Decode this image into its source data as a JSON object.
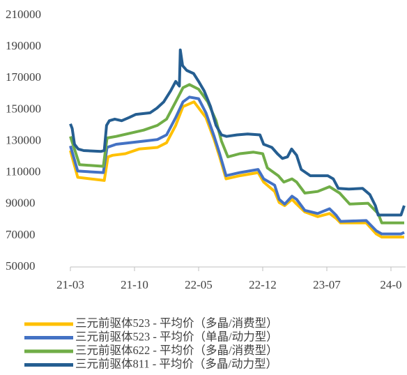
{
  "chart_data": {
    "type": "line",
    "xlim": [
      0,
      36.6
    ],
    "xticks": [
      {
        "value": 0,
        "label": "21-03"
      },
      {
        "value": 7,
        "label": "21-10"
      },
      {
        "value": 14,
        "label": "22-05"
      },
      {
        "value": 21,
        "label": "22-12"
      },
      {
        "value": 28,
        "label": "23-07"
      },
      {
        "value": 35,
        "label": "24-0"
      }
    ],
    "ylim": [
      50000,
      210000
    ],
    "yticks": [
      50000,
      70000,
      90000,
      110000,
      130000,
      150000,
      170000,
      190000,
      210000
    ],
    "grid": false,
    "legend": "bottom",
    "series": [
      {
        "name": "三元前驱体523 - 平均价（多晶/消费型）",
        "color": "#ffc000",
        "x": [
          0,
          0.8,
          3.7,
          4.1,
          4.6,
          6,
          7.5,
          9.5,
          10.5,
          11.5,
          12.3,
          13.5,
          14.8,
          15.7,
          16.3,
          17,
          18.5,
          20.5,
          21.1,
          22.3,
          22.8,
          23.4,
          24.2,
          24.7,
          25.6,
          27,
          28.3,
          29,
          29.5,
          32.3,
          33.4,
          34,
          36.45
        ],
        "values": [
          124000,
          107000,
          105000,
          120000,
          121000,
          122000,
          125000,
          126000,
          129000,
          140000,
          152000,
          155000,
          145000,
          131000,
          120000,
          106000,
          108000,
          110000,
          104000,
          98000,
          91000,
          89000,
          93000,
          90000,
          85000,
          82000,
          84000,
          81000,
          78000,
          78000,
          71000,
          69000,
          69000
        ]
      },
      {
        "name": "三元前驱体523 - 平均价（单晶/动力型）",
        "color": "#4472c4",
        "x": [
          0,
          0.8,
          3.6,
          4.0,
          5,
          8,
          9.5,
          10.5,
          11.5,
          12.3,
          13,
          14,
          14.8,
          15.7,
          16.3,
          17,
          18.5,
          20.5,
          21.1,
          22.3,
          22.8,
          23.4,
          24.2,
          24.7,
          25.6,
          27,
          28.3,
          29,
          29.5,
          32.3,
          33.4,
          34,
          36.1,
          36.45
        ],
        "values": [
          127000,
          111000,
          110000,
          126000,
          128000,
          130000,
          131000,
          134000,
          145000,
          155000,
          158000,
          157000,
          148000,
          133000,
          122000,
          108000,
          110000,
          112000,
          106000,
          102000,
          93000,
          90000,
          95000,
          93000,
          86000,
          84000,
          87000,
          83000,
          79000,
          79500,
          73000,
          71000,
          71000,
          72000
        ]
      },
      {
        "name": "三元前驱体622 - 平均价（多晶/消费型）",
        "color": "#70ad47",
        "x": [
          0,
          1.0,
          3.6,
          4.0,
          5,
          8,
          9.5,
          10.5,
          11.5,
          12.3,
          13,
          14,
          15,
          15.9,
          16.5,
          17.2,
          18.5,
          20,
          21,
          21.5,
          22.7,
          23.3,
          24.2,
          24.7,
          25.6,
          27,
          28.3,
          29.4,
          30.5,
          32.5,
          33.6,
          34,
          36.45
        ],
        "values": [
          133000,
          115000,
          114000,
          132000,
          133000,
          137000,
          140000,
          144000,
          155000,
          164000,
          166000,
          163000,
          155000,
          143000,
          130000,
          120000,
          122000,
          123000,
          122000,
          113000,
          108000,
          104000,
          106000,
          104000,
          97000,
          98000,
          101000,
          97000,
          90000,
          90500,
          84000,
          78000,
          78000
        ]
      },
      {
        "name": "三元前驱体811 - 平均价（多晶/动力型）",
        "color": "#255e91",
        "x": [
          0,
          0.2,
          0.45,
          0.85,
          1.45,
          3.35,
          3.7,
          3.95,
          4.25,
          4.85,
          5.6,
          6.4,
          7.15,
          8.7,
          9.45,
          10.2,
          10.95,
          11.5,
          11.9,
          12.0,
          12.25,
          12.7,
          13.45,
          14.0,
          14.6,
          15.3,
          15.9,
          16.5,
          17.05,
          18.2,
          19.35,
          20.7,
          21.1,
          22.0,
          22.6,
          23.15,
          23.7,
          24.15,
          24.7,
          25.2,
          26.2,
          28.1,
          28.7,
          29.25,
          30.4,
          31.9,
          32.7,
          33.3,
          33.6,
          36.1,
          36.45
        ],
        "values": [
          141000,
          138000,
          128000,
          125000,
          124000,
          123500,
          124000,
          140000,
          143000,
          144000,
          143000,
          145000,
          147000,
          148000,
          151000,
          155000,
          162000,
          168000,
          165000,
          188000,
          178000,
          175000,
          173000,
          168000,
          162000,
          152000,
          140000,
          134000,
          133000,
          134000,
          134500,
          134000,
          128000,
          126000,
          122000,
          119000,
          120000,
          125000,
          121000,
          112000,
          108000,
          108000,
          106000,
          100000,
          99500,
          100000,
          96000,
          89000,
          83000,
          83000,
          89000
        ]
      }
    ]
  }
}
